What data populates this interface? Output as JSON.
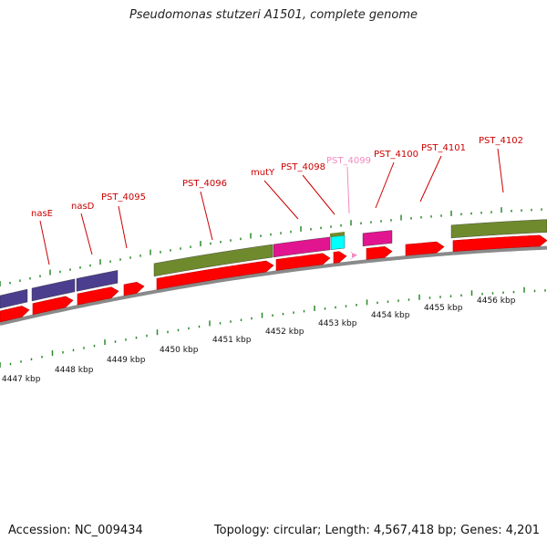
{
  "title": "Pseudomonas stutzeri A1501, complete genome",
  "footer": {
    "accession": "Accession: NC_009434",
    "summary": "Topology: circular; Length: 4,567,418 bp; Genes: 4,201"
  },
  "colors": {
    "cds": "#ff0000",
    "cog_purple": "#4b3e8e",
    "cog_olive": "#6f8a2c",
    "cog_magenta": "#e0158f",
    "cog_cyan": "#00ffff",
    "pseudo_pink": "#f58ac0",
    "backbone": "#8a8a8a",
    "tick": "#2b8a2b",
    "label_red": "#cc0000",
    "label_pink": "#f58ac0"
  },
  "gene_labels": [
    {
      "id": "nasE",
      "text": "nasE",
      "color": "label_red"
    },
    {
      "id": "nasD",
      "text": "nasD",
      "color": "label_red"
    },
    {
      "id": "PST_4095",
      "text": "PST_4095",
      "color": "label_red"
    },
    {
      "id": "PST_4096",
      "text": "PST_4096",
      "color": "label_red"
    },
    {
      "id": "mutY",
      "text": "mutY",
      "color": "label_red"
    },
    {
      "id": "PST_4098",
      "text": "PST_4098",
      "color": "label_red"
    },
    {
      "id": "PST_4099",
      "text": "PST_4099",
      "color": "label_pink"
    },
    {
      "id": "PST_4100",
      "text": "PST_4100",
      "color": "label_red"
    },
    {
      "id": "PST_4101",
      "text": "PST_4101",
      "color": "label_red"
    },
    {
      "id": "PST_4102",
      "text": "PST_4102",
      "color": "label_red"
    }
  ],
  "kbp_labels": [
    "4447 kbp",
    "4448 kbp",
    "4449 kbp",
    "4450 kbp",
    "4451 kbp",
    "4452 kbp",
    "4453 kbp",
    "4454 kbp",
    "4455 kbp",
    "4456 kbp"
  ]
}
